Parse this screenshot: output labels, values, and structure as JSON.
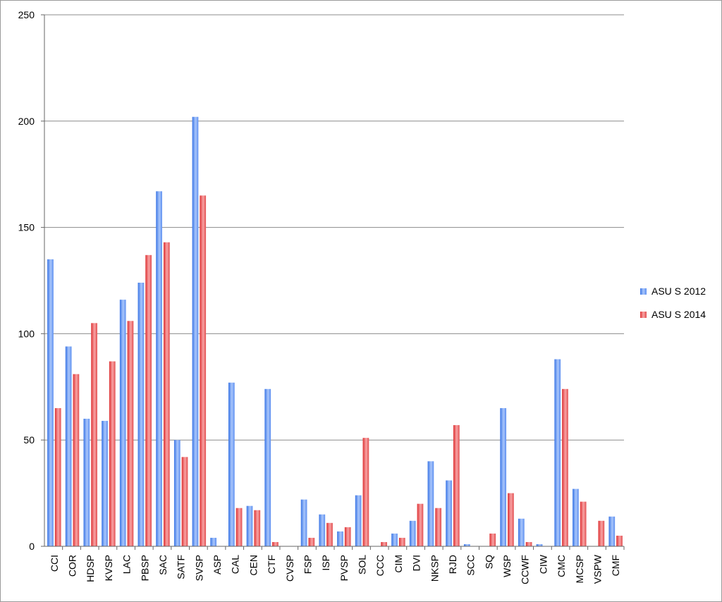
{
  "chart_data": {
    "type": "bar",
    "title": "",
    "xlabel": "",
    "ylabel": "",
    "ylim": [
      0,
      250
    ],
    "yticks": [
      "0",
      "50",
      "100",
      "150",
      "200",
      "250"
    ],
    "grid": true,
    "legend_position": "right",
    "categories": [
      "CCI",
      "COR",
      "HDSP",
      "KVSP",
      "LAC",
      "PBSP",
      "SAC",
      "SATF",
      "SVSP",
      "ASP",
      "CAL",
      "CEN",
      "CTF",
      "CVSP",
      "FSP",
      "ISP",
      "PVSP",
      "SOL",
      "CCC",
      "CIM",
      "DVI",
      "NKSP",
      "RJD",
      "SCC",
      "SQ",
      "WSP",
      "CCWF",
      "CIW",
      "CMC",
      "MCSP",
      "VSPW",
      "CMF"
    ],
    "series": [
      {
        "name": "ASU S 2012",
        "color": "#5b8ff0",
        "values": [
          135,
          94,
          60,
          59,
          116,
          124,
          167,
          50,
          202,
          4,
          77,
          19,
          74,
          0,
          22,
          15,
          7,
          24,
          0,
          6,
          12,
          40,
          31,
          1,
          0,
          65,
          13,
          1,
          88,
          27,
          0,
          14
        ]
      },
      {
        "name": "ASU S 2014",
        "color": "#e8494b",
        "values": [
          65,
          81,
          105,
          87,
          106,
          137,
          143,
          42,
          165,
          0,
          18,
          17,
          2,
          0,
          4,
          11,
          9,
          51,
          2,
          4,
          20,
          18,
          57,
          0,
          6,
          25,
          2,
          0,
          74,
          21,
          12,
          5
        ]
      }
    ]
  }
}
